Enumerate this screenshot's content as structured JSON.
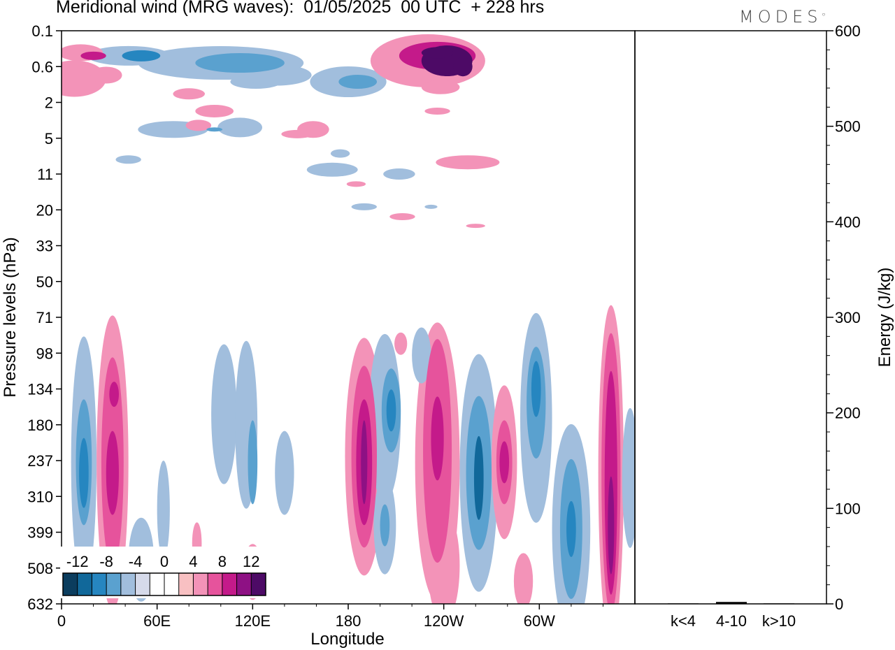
{
  "title": "Meridional wind (MRG waves):  01/05/2025  00 UTC  + 228 hrs",
  "brand": "MODES",
  "chart_data": [
    {
      "type": "heatmap",
      "xlabel": "Longitude",
      "ylabel": "Pressure levels (hPa)",
      "x_ticks": [
        "0",
        "60E",
        "120E",
        "180",
        "120W",
        "60W"
      ],
      "y_ticks": [
        "0.1",
        "0.6",
        "2",
        "5",
        "11",
        "20",
        "33",
        "50",
        "71",
        "98",
        "134",
        "180",
        "237",
        "310",
        "399",
        "508",
        "632"
      ],
      "colorbar": {
        "labels": [
          "-12",
          "-8",
          "-4",
          "0",
          "4",
          "8",
          "12"
        ],
        "levels": [
          -14,
          -12,
          -10,
          -8,
          -6,
          -4,
          -2,
          2,
          4,
          6,
          8,
          10,
          12,
          14
        ],
        "colors": [
          "#0b3d5e",
          "#11689a",
          "#2686c0",
          "#5aa1cf",
          "#a1bedd",
          "#d6daea",
          "#ffffff",
          "#ffffff",
          "#f8c0c2",
          "#f393b8",
          "#e6539c",
          "#c41a8a",
          "#8e1184",
          "#4d0a66"
        ]
      },
      "features": [
        {
          "name": "stratosphere 180-120W negative",
          "lon": 150,
          "level": 0.6,
          "value": -7
        },
        {
          "name": "upper 60W positive max",
          "lon": 305,
          "level": 0.6,
          "value": 15
        },
        {
          "name": "lower 180 positive",
          "lon": 190,
          "level": 237,
          "value": 11
        },
        {
          "name": "lower 120W-60W positive",
          "lon": 230,
          "level": 208,
          "value": 8
        },
        {
          "name": "lower 100W negative",
          "lon": 262,
          "level": 270,
          "value": -11
        },
        {
          "name": "lower 30W positive",
          "lon": 345,
          "level": 380,
          "value": 11
        },
        {
          "name": "lower 60W negative",
          "lon": 298,
          "level": 134,
          "value": -8
        },
        {
          "name": "lower 10E negative",
          "lon": 13,
          "level": 237,
          "value": -8
        },
        {
          "name": "lower 30E positive",
          "lon": 33,
          "level": 237,
          "value": 9
        }
      ]
    },
    {
      "type": "bar",
      "ylabel": "Energy (J/kg)",
      "categories": [
        "k<4",
        "4-10",
        "k>10"
      ],
      "values": [
        0.5,
        2,
        0.5
      ],
      "ylim": [
        0,
        600
      ],
      "y_ticks": [
        "0",
        "100",
        "200",
        "300",
        "400",
        "500",
        "600"
      ]
    }
  ]
}
